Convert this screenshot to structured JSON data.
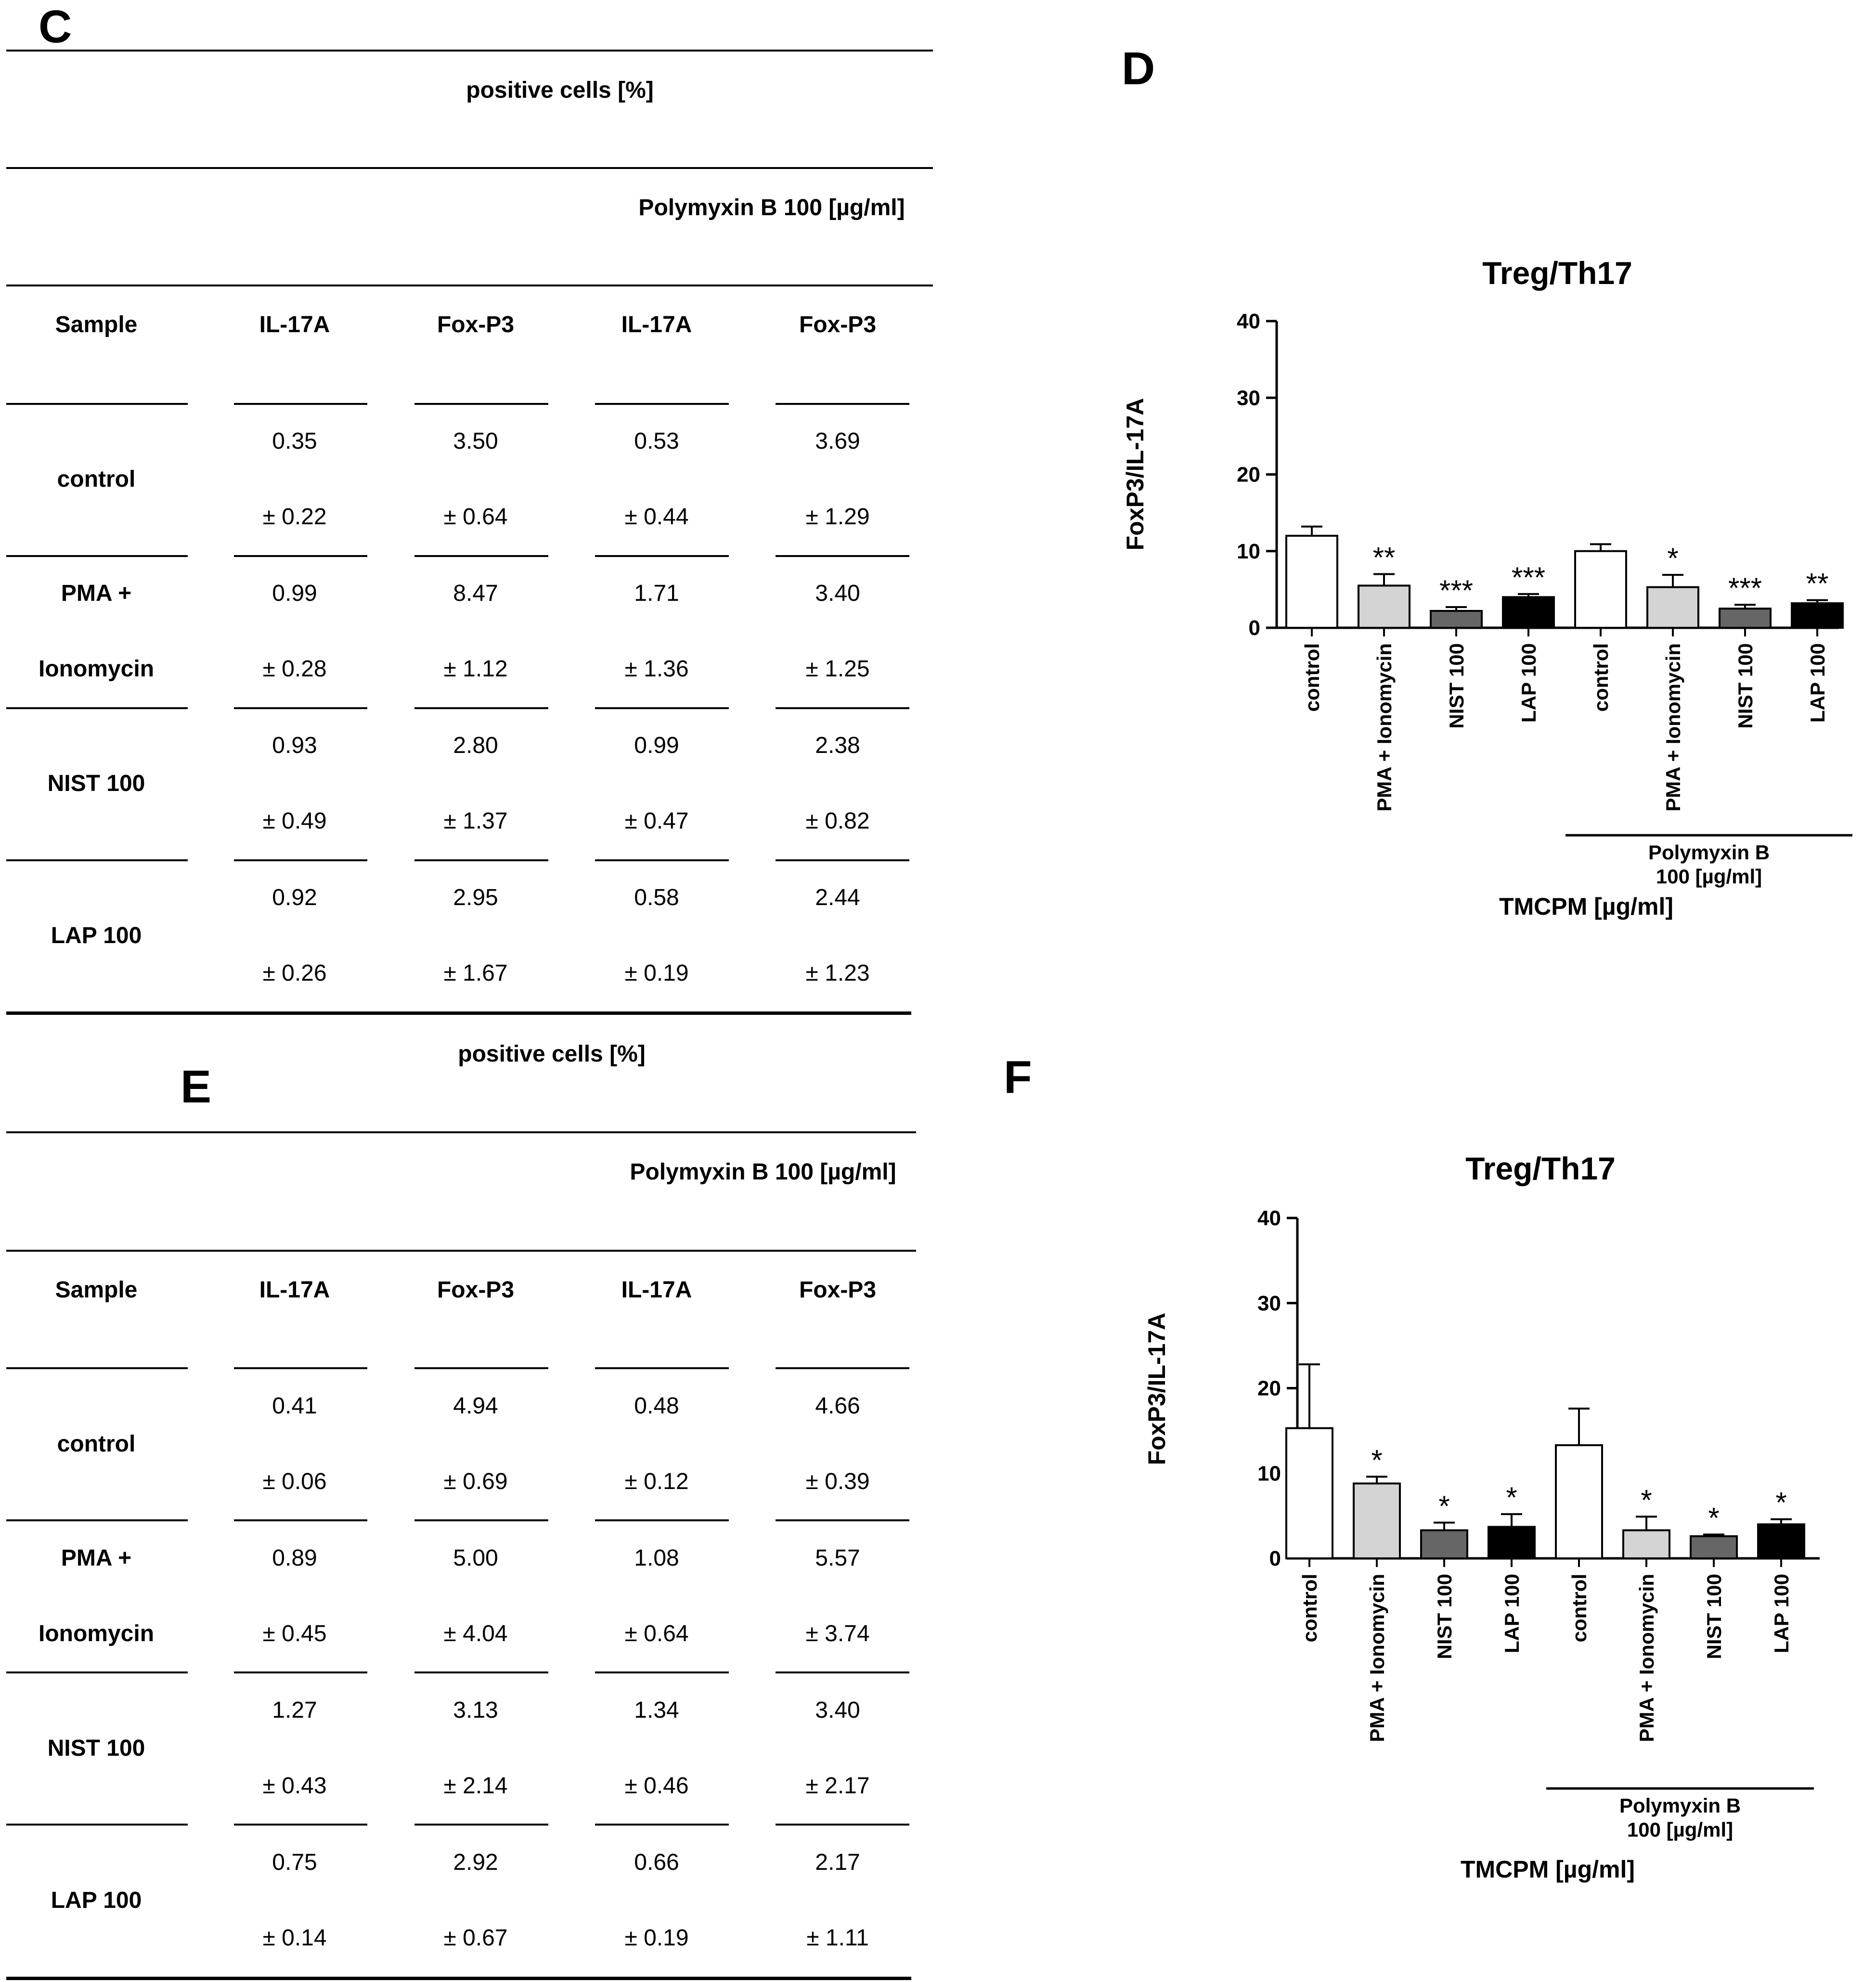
{
  "panels": {
    "c": "C",
    "d": "D",
    "e": "E",
    "f": "F"
  },
  "tables": [
    {
      "header_top": "positive cells [%]",
      "header_sub": "Polymyxin B 100 [µg/ml]",
      "columns": [
        "Sample",
        "IL-17A",
        "Fox-P3",
        "IL-17A",
        "Fox-P3"
      ],
      "rows": [
        {
          "sample": [
            "control"
          ],
          "values": [
            "0.35",
            "3.50",
            "0.53",
            "3.69"
          ],
          "errors": [
            "± 0.22",
            "± 0.64",
            "± 0.44",
            "± 1.29"
          ]
        },
        {
          "sample": [
            "PMA +",
            "Ionomycin"
          ],
          "values": [
            "0.99",
            "8.47",
            "1.71",
            "3.40"
          ],
          "errors": [
            "± 0.28",
            "± 1.12",
            "± 1.36",
            "± 1.25"
          ]
        },
        {
          "sample": [
            "NIST 100"
          ],
          "values": [
            "0.93",
            "2.80",
            "0.99",
            "2.38"
          ],
          "errors": [
            "± 0.49",
            "± 1.37",
            "± 0.47",
            "± 0.82"
          ]
        },
        {
          "sample": [
            "LAP 100"
          ],
          "values": [
            "0.92",
            "2.95",
            "0.58",
            "2.44"
          ],
          "errors": [
            "± 0.26",
            "± 1.67",
            "± 0.19",
            "± 1.23"
          ]
        }
      ]
    },
    {
      "header_top": "positive cells [%]",
      "header_sub": "Polymyxin B 100 [µg/ml]",
      "columns": [
        "Sample",
        "IL-17A",
        "Fox-P3",
        "IL-17A",
        "Fox-P3"
      ],
      "rows": [
        {
          "sample": [
            "control"
          ],
          "values": [
            "0.41",
            "4.94",
            "0.48",
            "4.66"
          ],
          "errors": [
            "± 0.06",
            "± 0.69",
            "± 0.12",
            "± 0.39"
          ]
        },
        {
          "sample": [
            "PMA +",
            "Ionomycin"
          ],
          "values": [
            "0.89",
            "5.00",
            "1.08",
            "5.57"
          ],
          "errors": [
            "± 0.45",
            "± 4.04",
            "± 0.64",
            "± 3.74"
          ]
        },
        {
          "sample": [
            "NIST 100"
          ],
          "values": [
            "1.27",
            "3.13",
            "1.34",
            "3.40"
          ],
          "errors": [
            "± 0.43",
            "± 2.14",
            "± 0.46",
            "± 2.17"
          ]
        },
        {
          "sample": [
            "LAP 100"
          ],
          "values": [
            "0.75",
            "2.92",
            "0.66",
            "2.17"
          ],
          "errors": [
            "± 0.14",
            "± 0.67",
            "± 0.19",
            "± 1.11"
          ]
        }
      ]
    }
  ],
  "chart_data": [
    {
      "type": "bar",
      "title": "Treg/Th17",
      "ylabel": "FoxP3/IL-17A",
      "xlabel": "TMCPM [µg/ml]",
      "ylim": [
        0,
        40
      ],
      "yticks": [
        "0",
        "10",
        "20",
        "30",
        "40"
      ],
      "categories": [
        "control",
        "PMA + Ionomycin",
        "NIST 100",
        "LAP 100",
        "control",
        "PMA + Ionomycin",
        "NIST 100",
        "LAP 100"
      ],
      "values": [
        12.0,
        5.5,
        2.2,
        4.0,
        10.0,
        5.3,
        2.5,
        3.2
      ],
      "errors": [
        1.2,
        1.5,
        0.5,
        0.4,
        0.9,
        1.6,
        0.5,
        0.4
      ],
      "significance": [
        "",
        "**",
        "***",
        "***",
        "",
        "*",
        "***",
        "**"
      ],
      "bar_colors": [
        "#ffffff",
        "#d4d4d4",
        "#666666",
        "#000000",
        "#ffffff",
        "#d4d4d4",
        "#666666",
        "#000000"
      ],
      "group_label": [
        "Polymyxin B",
        "100 [µg/ml]"
      ]
    },
    {
      "type": "bar",
      "title": "Treg/Th17",
      "ylabel": "FoxP3/IL-17A",
      "xlabel": "TMCPM [µg/ml]",
      "ylim": [
        0,
        40
      ],
      "yticks": [
        "0",
        "10",
        "20",
        "30",
        "40"
      ],
      "categories": [
        "control",
        "PMA + Ionomycin",
        "NIST 100",
        "LAP 100",
        "control",
        "PMA + Ionomycin",
        "NIST 100",
        "LAP 100"
      ],
      "values": [
        15.3,
        8.8,
        3.3,
        3.7,
        13.3,
        3.3,
        2.6,
        4.0
      ],
      "errors": [
        7.5,
        0.8,
        0.9,
        1.5,
        4.3,
        1.6,
        0.2,
        0.6
      ],
      "significance": [
        "",
        "*",
        "*",
        "*",
        "",
        "*",
        "*",
        "*"
      ],
      "bar_colors": [
        "#ffffff",
        "#d4d4d4",
        "#666666",
        "#000000",
        "#ffffff",
        "#d4d4d4",
        "#666666",
        "#000000"
      ],
      "group_label": [
        "Polymyxin B",
        "100 [µg/ml]"
      ]
    }
  ]
}
